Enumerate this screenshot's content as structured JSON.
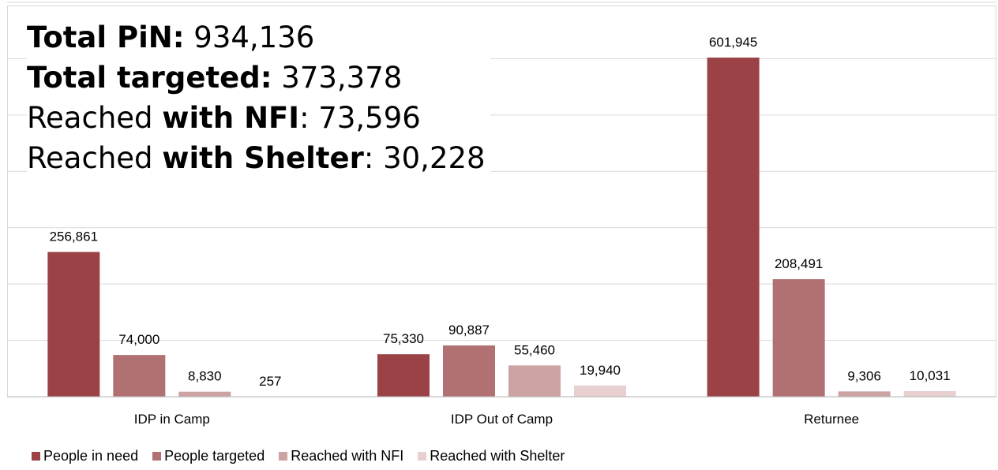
{
  "summary": {
    "pin_label": "Total PiN:",
    "pin_value": "934,136",
    "targeted_label": "Total targeted:",
    "targeted_value": "373,378",
    "nfi_prefix": "Reached ",
    "nfi_bold": "with NFI",
    "nfi_value": ": 73,596",
    "shelter_prefix": "Reached ",
    "shelter_bold": "with Shelter",
    "shelter_value": ": 30,228"
  },
  "chart_data": {
    "type": "bar",
    "categories": [
      "IDP in Camp",
      "IDP Out of Camp",
      "Returnee"
    ],
    "series": [
      {
        "name": "People in need",
        "values": [
          256861,
          75330,
          601945
        ],
        "labels": [
          "256,861",
          "75,330",
          "601,945"
        ],
        "color": "#9a4245"
      },
      {
        "name": "People targeted",
        "values": [
          74000,
          90887,
          208491
        ],
        "labels": [
          "74,000",
          "90,887",
          "208,491"
        ],
        "color": "#b17071"
      },
      {
        "name": "Reached with NFI",
        "values": [
          8830,
          55460,
          9306
        ],
        "labels": [
          "8,830",
          "55,460",
          "9,306"
        ],
        "color": "#cda2a2"
      },
      {
        "name": "Reached with Shelter",
        "values": [
          257,
          19940,
          10031
        ],
        "labels": [
          "257",
          "19,940",
          "10,031"
        ],
        "color": "#e7d0cf"
      }
    ],
    "ylim": [
      0,
      700000
    ],
    "grid": true,
    "legend": "bottom-left",
    "xlabel": "",
    "ylabel": ""
  }
}
